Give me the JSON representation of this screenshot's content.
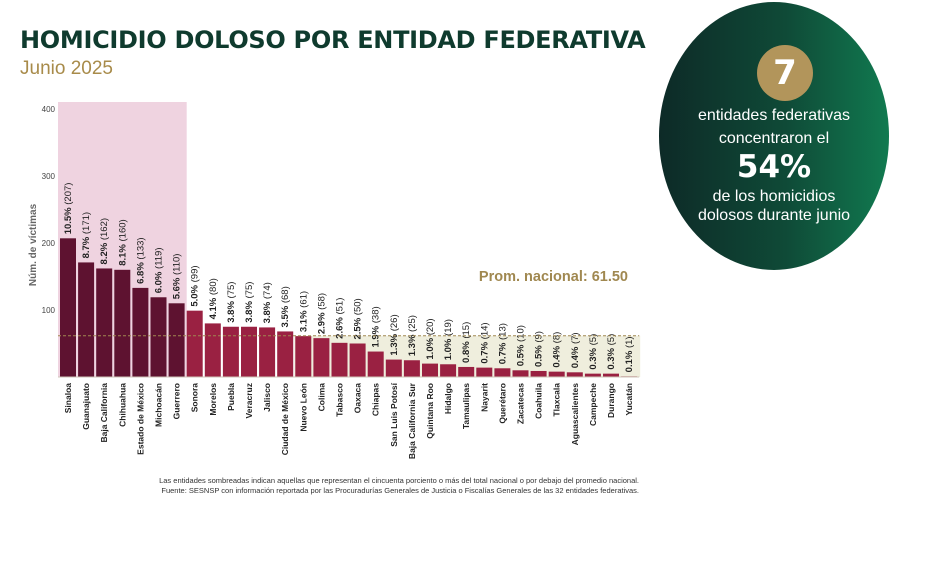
{
  "header": {
    "title": "HOMICIDIO DOLOSO POR ENTIDAD FEDERATIVA",
    "subtitle": "Junio 2025"
  },
  "highlight": {
    "number": "7",
    "line1": "entidades federativas",
    "line2": "concentraron el",
    "percent": "54%",
    "line3": "de los homicidios",
    "line4": "dolosos durante junio"
  },
  "footnotes": {
    "note": "Las entidades sombreadas indican aquellas que representan el cincuenta porciento o más del total nacional o por debajo del promedio nacional.",
    "source": "Fuente: SESNSP con información reportada por las Procuradurías Generales de Justicia o Fiscalías Generales de las 32 entidades federativas."
  },
  "colors": {
    "title": "#0f3b2e",
    "subtitle": "#a88b4a",
    "bar_top": "#5e1230",
    "bar_rest": "#9a2142",
    "shade_top": "#efd3e0",
    "shade_low": "#efeedd",
    "average": "#a08850",
    "badge_circle": "#b2955b"
  },
  "chart_data": {
    "type": "bar",
    "ylabel": "Núm. de víctimas",
    "ylim": [
      0,
      400
    ],
    "yticks": [
      "100",
      "200",
      "300",
      "400"
    ],
    "average_label": "Prom. nacional: 61.50",
    "average_value": 61.5,
    "top_group_count": 7,
    "categories": [
      "Sinaloa",
      "Guanajuato",
      "Baja California",
      "Chihuahua",
      "Estado de México",
      "Michoacán",
      "Guerrero",
      "Sonora",
      "Morelos",
      "Puebla",
      "Veracruz",
      "Jalisco",
      "Ciudad de México",
      "Nuevo León",
      "Colima",
      "Tabasco",
      "Oaxaca",
      "Chiapas",
      "San Luis Potosí",
      "Baja California Sur",
      "Quintana Roo",
      "Hidalgo",
      "Tamaulipas",
      "Nayarit",
      "Querétaro",
      "Zacatecas",
      "Coahuila",
      "Tlaxcala",
      "Aguascalientes",
      "Campeche",
      "Durango",
      "Yucatán"
    ],
    "values": [
      207,
      171,
      162,
      160,
      133,
      119,
      110,
      99,
      80,
      75,
      75,
      74,
      68,
      61,
      58,
      51,
      50,
      38,
      26,
      25,
      20,
      19,
      15,
      14,
      13,
      10,
      9,
      8,
      7,
      5,
      5,
      1
    ],
    "percent_labels": [
      "10.5%",
      "8.7%",
      "8.2%",
      "8.1%",
      "6.8%",
      "6.0%",
      "5.6%",
      "5.0%",
      "4.1%",
      "3.8%",
      "3.8%",
      "3.8%",
      "3.5%",
      "3.1%",
      "2.9%",
      "2.6%",
      "2.5%",
      "1.9%",
      "1.3%",
      "1.3%",
      "1.0%",
      "1.0%",
      "0.8%",
      "0.7%",
      "0.7%",
      "0.5%",
      "0.5%",
      "0.4%",
      "0.4%",
      "0.3%",
      "0.3%",
      "0.1%"
    ],
    "count_labels": [
      "(207)",
      "(171)",
      "(162)",
      "(160)",
      "(133)",
      "(119)",
      "(110)",
      "(99)",
      "(80)",
      "(75)",
      "(75)",
      "(74)",
      "(68)",
      "(61)",
      "(58)",
      "(51)",
      "(50)",
      "(38)",
      "(26)",
      "(25)",
      "(20)",
      "(19)",
      "(15)",
      "(14)",
      "(13)",
      "(10)",
      "(9)",
      "(8)",
      "(7)",
      "(5)",
      "(5)",
      "(1)"
    ]
  }
}
